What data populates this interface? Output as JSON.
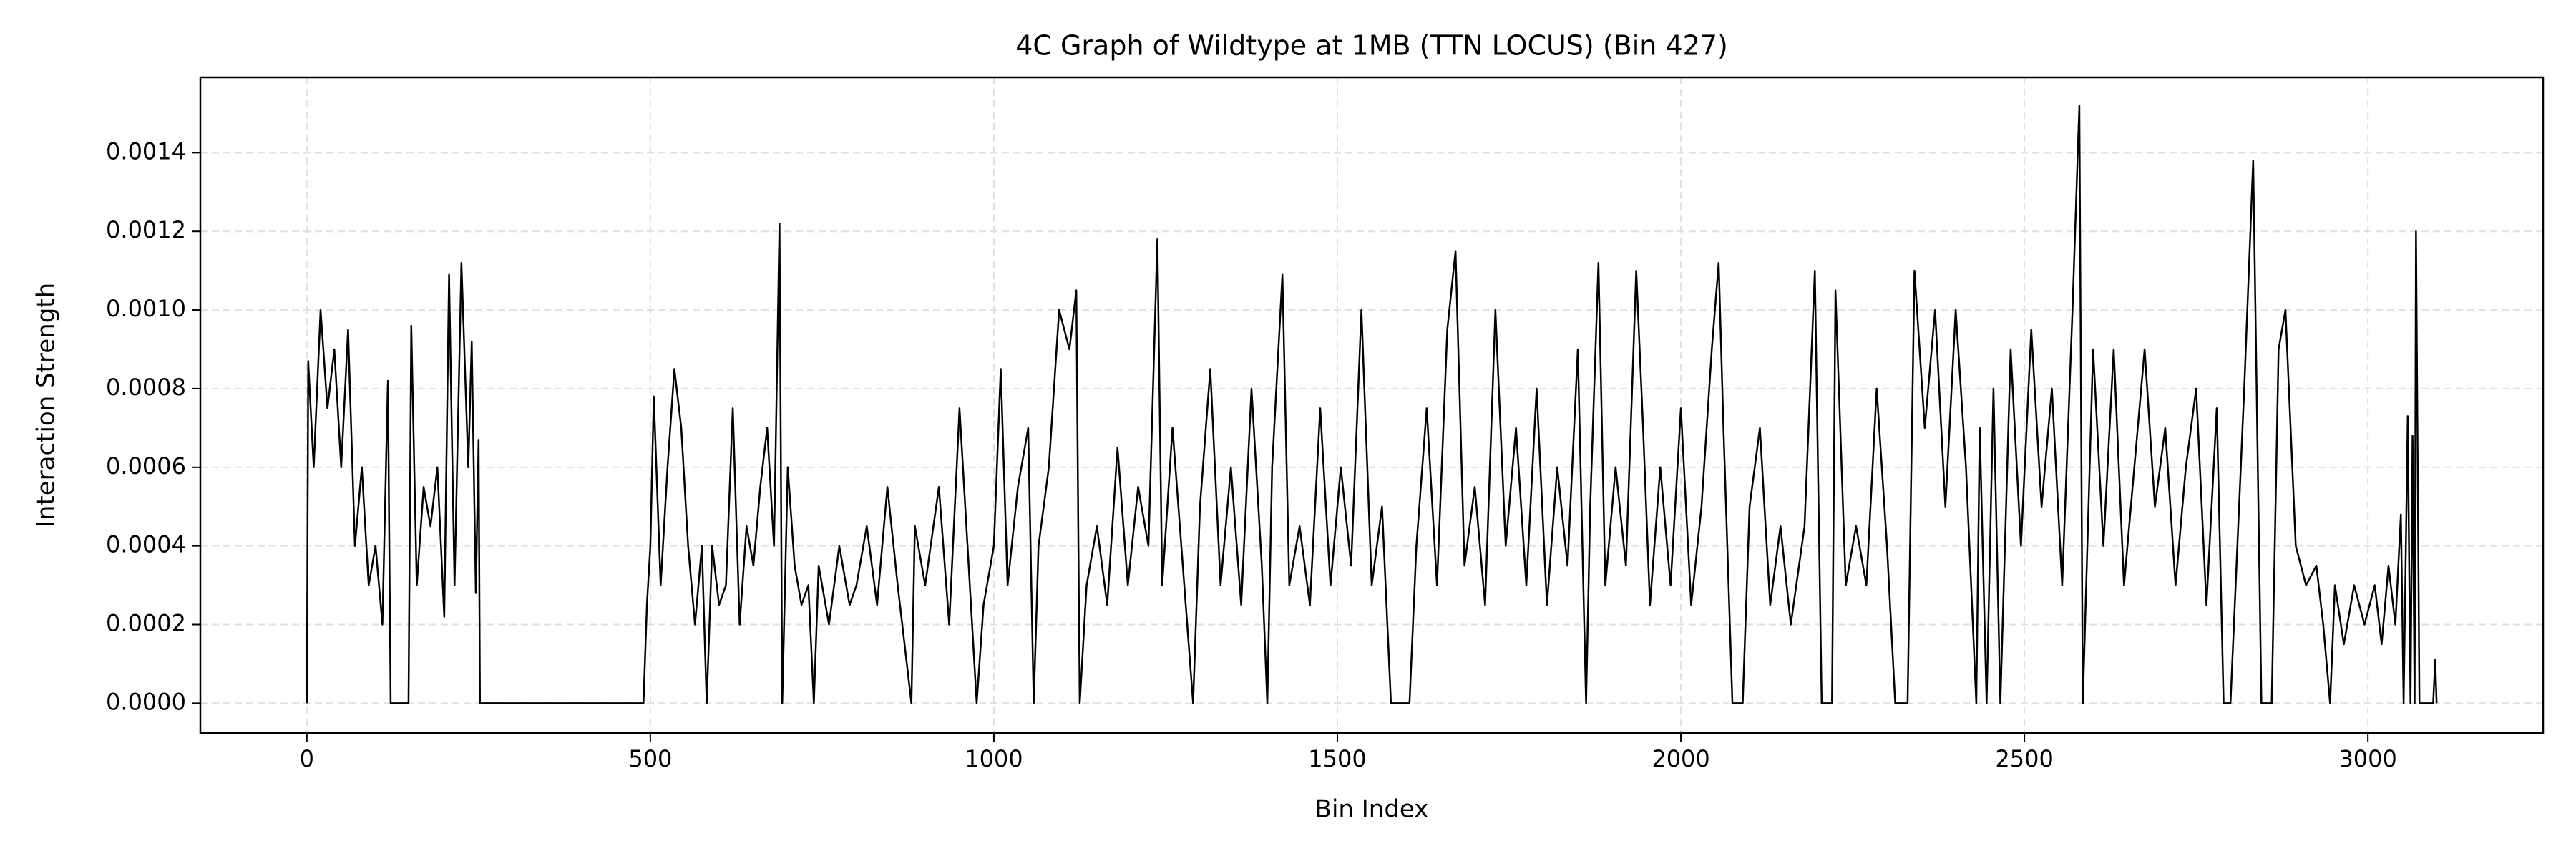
{
  "chart_data": {
    "type": "line",
    "title": "4C Graph of Wildtype at 1MB (TTN LOCUS) (Bin 427)",
    "x_label": "Bin Index",
    "y_label": "Interaction Strength",
    "xlim": [
      -155,
      3255
    ],
    "ylim": [
      -7.58e-05,
      0.0015918
    ],
    "xticks": [
      0,
      500,
      1000,
      1500,
      2000,
      2500,
      3000
    ],
    "yticks": [
      {
        "value": 0,
        "label": "0.0000"
      },
      0.0002,
      0.0004,
      0.0006,
      0.0008,
      {
        "value": 0.001,
        "label": "0.0010"
      },
      0.0012,
      0.0014
    ],
    "grid": true,
    "series": [
      {
        "name": "Wildtype",
        "color": "#000000",
        "x": [
          0,
          2,
          10,
          20,
          30,
          40,
          50,
          60,
          70,
          80,
          90,
          100,
          110,
          118,
          122,
          148,
          152,
          160,
          170,
          180,
          190,
          200,
          207,
          215,
          225,
          235,
          240,
          246,
          250,
          252,
          490,
          495,
          500,
          505,
          515,
          525,
          535,
          545,
          555,
          565,
          575,
          582,
          590,
          600,
          610,
          620,
          630,
          640,
          650,
          660,
          670,
          680,
          688,
          692,
          700,
          710,
          720,
          730,
          738,
          745,
          760,
          775,
          790,
          800,
          815,
          830,
          845,
          860,
          880,
          885,
          900,
          920,
          935,
          950,
          965,
          975,
          985,
          1000,
          1010,
          1020,
          1035,
          1050,
          1058,
          1065,
          1080,
          1095,
          1110,
          1120,
          1125,
          1135,
          1150,
          1165,
          1180,
          1195,
          1210,
          1225,
          1238,
          1245,
          1260,
          1275,
          1290,
          1300,
          1315,
          1330,
          1345,
          1360,
          1375,
          1390,
          1398,
          1405,
          1420,
          1430,
          1445,
          1460,
          1475,
          1490,
          1505,
          1520,
          1535,
          1550,
          1565,
          1578,
          1605,
          1615,
          1630,
          1645,
          1660,
          1672,
          1685,
          1700,
          1715,
          1730,
          1745,
          1760,
          1775,
          1790,
          1805,
          1820,
          1835,
          1850,
          1862,
          1868,
          1880,
          1890,
          1905,
          1920,
          1935,
          1945,
          1955,
          1970,
          1985,
          2000,
          2015,
          2030,
          2045,
          2055,
          2062,
          2075,
          2090,
          2100,
          2115,
          2130,
          2145,
          2160,
          2180,
          2195,
          2205,
          2220,
          2225,
          2240,
          2255,
          2270,
          2285,
          2300,
          2312,
          2330,
          2340,
          2355,
          2370,
          2385,
          2400,
          2415,
          2430,
          2435,
          2445,
          2455,
          2465,
          2480,
          2495,
          2510,
          2525,
          2540,
          2555,
          2570,
          2580,
          2585,
          2600,
          2615,
          2630,
          2645,
          2660,
          2675,
          2690,
          2705,
          2720,
          2735,
          2750,
          2765,
          2780,
          2790,
          2800,
          2810,
          2820,
          2833,
          2845,
          2860,
          2870,
          2880,
          2895,
          2910,
          2925,
          2935,
          2945,
          2952,
          2965,
          2980,
          2995,
          3010,
          3020,
          3030,
          3040,
          3048,
          3052,
          3058,
          3062,
          3065,
          3068,
          3070,
          3075,
          3095,
          3098,
          3100
        ],
        "values": [
          0,
          0.00087,
          0.0006,
          0.001,
          0.00075,
          0.0009,
          0.0006,
          0.00095,
          0.0004,
          0.0006,
          0.0003,
          0.0004,
          0.0002,
          0.00082,
          0,
          0,
          0.00096,
          0.0003,
          0.00055,
          0.00045,
          0.0006,
          0.00022,
          0.00109,
          0.0003,
          0.00112,
          0.0006,
          0.00092,
          0.00028,
          0.00067,
          0,
          0,
          0.00025,
          0.0004,
          0.00078,
          0.0003,
          0.0006,
          0.00085,
          0.0007,
          0.0004,
          0.0002,
          0.0004,
          0,
          0.0004,
          0.00025,
          0.0003,
          0.00075,
          0.0002,
          0.00045,
          0.00035,
          0.00055,
          0.0007,
          0.0004,
          0.00122,
          0,
          0.0006,
          0.00035,
          0.00025,
          0.0003,
          0,
          0.00035,
          0.0002,
          0.0004,
          0.00025,
          0.0003,
          0.00045,
          0.00025,
          0.00055,
          0.0003,
          0,
          0.00045,
          0.0003,
          0.00055,
          0.0002,
          0.00075,
          0.0003,
          0,
          0.00025,
          0.0004,
          0.00085,
          0.0003,
          0.00055,
          0.0007,
          0,
          0.0004,
          0.0006,
          0.001,
          0.0009,
          0.00105,
          0,
          0.0003,
          0.00045,
          0.00025,
          0.00065,
          0.0003,
          0.00055,
          0.0004,
          0.00118,
          0.0003,
          0.0007,
          0.00035,
          0,
          0.0005,
          0.00085,
          0.0003,
          0.0006,
          0.00025,
          0.0008,
          0.00035,
          0,
          0.0006,
          0.00109,
          0.0003,
          0.00045,
          0.00025,
          0.00075,
          0.0003,
          0.0006,
          0.00035,
          0.001,
          0.0003,
          0.0005,
          0,
          0,
          0.0004,
          0.00075,
          0.0003,
          0.00095,
          0.00115,
          0.00035,
          0.00055,
          0.00025,
          0.001,
          0.0004,
          0.0007,
          0.0003,
          0.0008,
          0.00025,
          0.0006,
          0.00035,
          0.0009,
          0,
          0.0005,
          0.00112,
          0.0003,
          0.0006,
          0.00035,
          0.0011,
          0.0007,
          0.00025,
          0.0006,
          0.0003,
          0.00075,
          0.00025,
          0.0005,
          0.0009,
          0.00112,
          0.0007,
          0,
          0,
          0.0005,
          0.0007,
          0.00025,
          0.00045,
          0.0002,
          0.00045,
          0.0011,
          0,
          0,
          0.00105,
          0.0003,
          0.00045,
          0.0003,
          0.0008,
          0.0004,
          0,
          0,
          0.0011,
          0.0007,
          0.001,
          0.0005,
          0.001,
          0.0006,
          0,
          0.0007,
          0,
          0.0008,
          0,
          0.0009,
          0.0004,
          0.00095,
          0.0005,
          0.0008,
          0.0003,
          0.001,
          0.00152,
          0,
          0.0009,
          0.0004,
          0.0009,
          0.0003,
          0.0006,
          0.0009,
          0.0005,
          0.0007,
          0.0003,
          0.0006,
          0.0008,
          0.00025,
          0.00075,
          0,
          0,
          0.0004,
          0.0008,
          0.00138,
          0,
          0,
          0.0009,
          0.001,
          0.0004,
          0.0003,
          0.00035,
          0.0002,
          0,
          0.0003,
          0.00015,
          0.0003,
          0.0002,
          0.0003,
          0.00015,
          0.00035,
          0.0002,
          0.00048,
          0,
          0.00073,
          0,
          0.00068,
          0,
          0.0012,
          0,
          0,
          0.00011,
          0
        ]
      }
    ]
  }
}
